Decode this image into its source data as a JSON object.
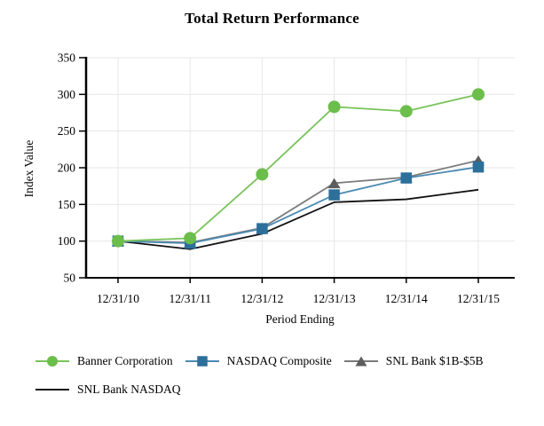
{
  "page": {
    "background": "#ffffff"
  },
  "chart_data": {
    "type": "line",
    "title": "Total Return Performance",
    "xlabel": "Period Ending",
    "ylabel": "Index Value",
    "ylim": [
      50,
      350
    ],
    "yticks": [
      50,
      100,
      150,
      200,
      250,
      300,
      350
    ],
    "categories": [
      "12/31/10",
      "12/31/11",
      "12/31/12",
      "12/31/13",
      "12/31/14",
      "12/31/15"
    ],
    "grid": true,
    "legend_position": "bottom",
    "axis_color": "#000000",
    "gridline_color": "#e7e7e7",
    "series": [
      {
        "name": "Banner Corporation",
        "marker": "circle",
        "marker_color": "#6cbe4b",
        "line_color": "#79c35b",
        "values": [
          100,
          104,
          191,
          283,
          277,
          300
        ]
      },
      {
        "name": "NASDAQ Composite",
        "marker": "square",
        "marker_color": "#2d6f9b",
        "line_color": "#4a8ab2",
        "values": [
          100,
          97,
          117,
          163,
          186,
          201
        ]
      },
      {
        "name": "SNL Bank $1B-$5B",
        "marker": "triangle",
        "marker_color": "#5d5d5d",
        "line_color": "#7a7a7a",
        "values": [
          100,
          98,
          118,
          179,
          187,
          210
        ]
      },
      {
        "name": "SNL Bank NASDAQ",
        "marker": "none",
        "marker_color": "#111111",
        "line_color": "#111111",
        "values": [
          100,
          89,
          110,
          153,
          157,
          170
        ]
      }
    ]
  }
}
